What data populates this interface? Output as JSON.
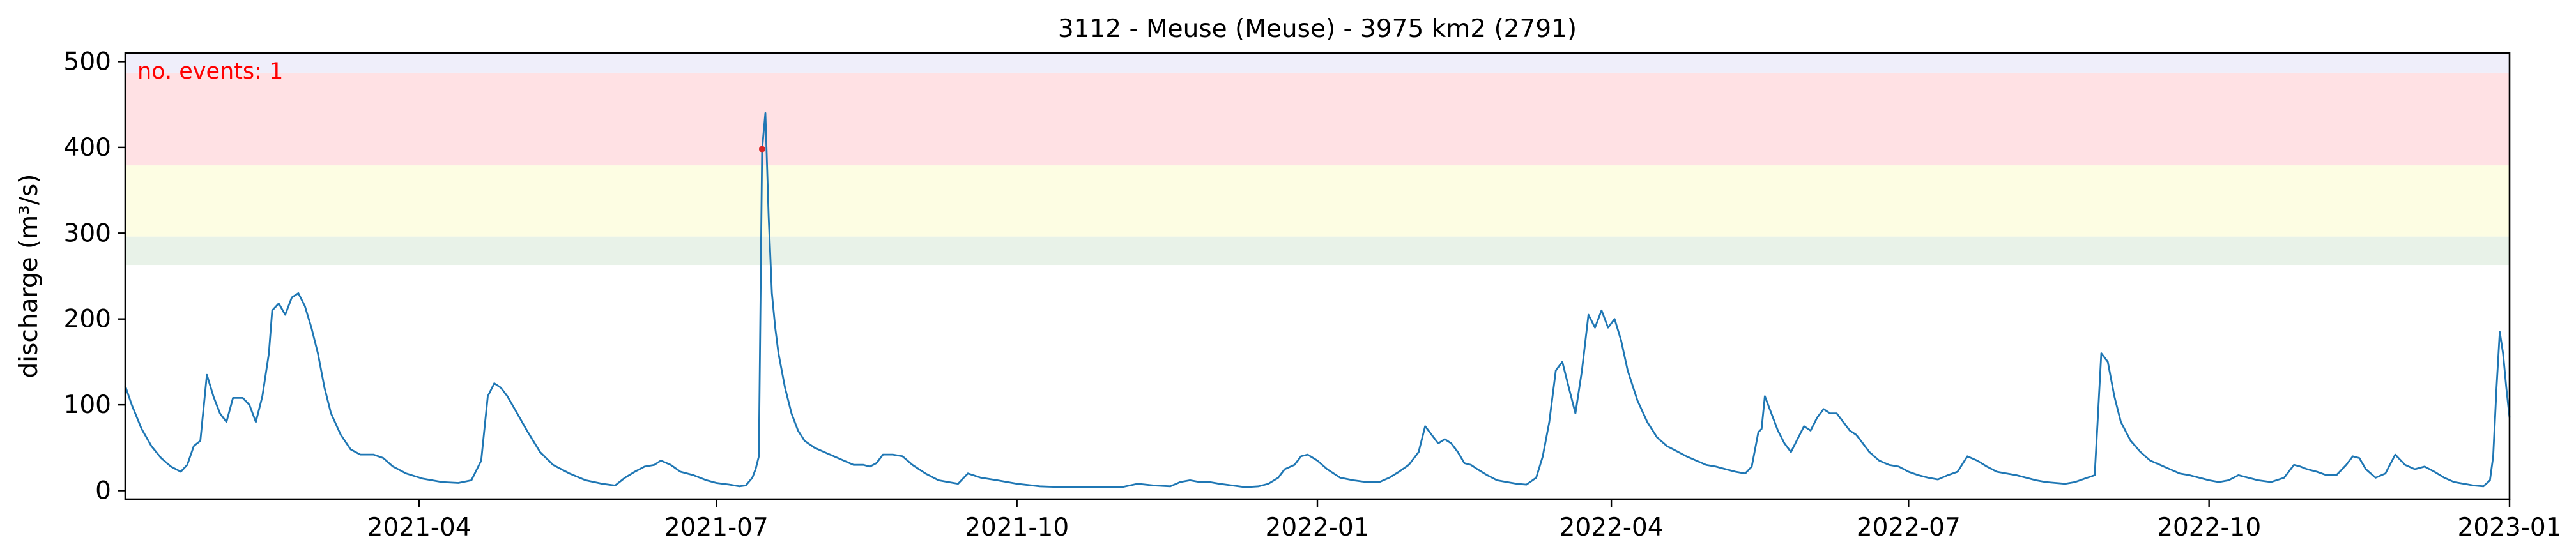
{
  "chart_data": {
    "type": "line",
    "title": "3112 - Meuse (Meuse) - 3975 km2 (2791)",
    "xlabel": "",
    "ylabel": "discharge (m³/s)",
    "xlim": [
      "2021-01-01",
      "2023-01-01"
    ],
    "ylim": [
      -10,
      510
    ],
    "x_ticks": [
      "2021-04",
      "2021-07",
      "2021-10",
      "2022-01",
      "2022-04",
      "2022-07",
      "2022-10",
      "2023-01"
    ],
    "y_ticks": [
      0,
      100,
      200,
      300,
      400,
      500
    ],
    "grid": false,
    "annotation": "no. events: 1",
    "annotation_color": "#ff0000",
    "line_color": "#1f77b4",
    "threshold_bands": [
      {
        "from": 263,
        "to": 296,
        "color": "#e8f2e8"
      },
      {
        "from": 296,
        "to": 379,
        "color": "#fdfde3"
      },
      {
        "from": 379,
        "to": 487,
        "color": "#ffe1e4"
      },
      {
        "from": 487,
        "to": 510,
        "color": "#efeefa"
      }
    ],
    "events": [
      {
        "date": "2021-07-15",
        "value": 398,
        "color": "#d62728"
      }
    ],
    "series": [
      {
        "points": [
          [
            "2021-01-01",
            122
          ],
          [
            "2021-01-03",
            100
          ],
          [
            "2021-01-06",
            72
          ],
          [
            "2021-01-09",
            52
          ],
          [
            "2021-01-12",
            38
          ],
          [
            "2021-01-15",
            28
          ],
          [
            "2021-01-18",
            22
          ],
          [
            "2021-01-20",
            30
          ],
          [
            "2021-01-22",
            52
          ],
          [
            "2021-01-24",
            58
          ],
          [
            "2021-01-26",
            135
          ],
          [
            "2021-01-28",
            110
          ],
          [
            "2021-01-30",
            90
          ],
          [
            "2021-02-01",
            80
          ],
          [
            "2021-02-03",
            108
          ],
          [
            "2021-02-06",
            108
          ],
          [
            "2021-02-08",
            100
          ],
          [
            "2021-02-10",
            80
          ],
          [
            "2021-02-12",
            110
          ],
          [
            "2021-02-14",
            160
          ],
          [
            "2021-02-15",
            210
          ],
          [
            "2021-02-17",
            218
          ],
          [
            "2021-02-19",
            205
          ],
          [
            "2021-02-21",
            225
          ],
          [
            "2021-02-23",
            230
          ],
          [
            "2021-02-25",
            215
          ],
          [
            "2021-02-27",
            190
          ],
          [
            "2021-03-01",
            160
          ],
          [
            "2021-03-03",
            120
          ],
          [
            "2021-03-05",
            90
          ],
          [
            "2021-03-08",
            65
          ],
          [
            "2021-03-11",
            48
          ],
          [
            "2021-03-14",
            42
          ],
          [
            "2021-03-18",
            42
          ],
          [
            "2021-03-21",
            38
          ],
          [
            "2021-03-24",
            28
          ],
          [
            "2021-03-28",
            20
          ],
          [
            "2021-04-02",
            14
          ],
          [
            "2021-04-08",
            10
          ],
          [
            "2021-04-13",
            9
          ],
          [
            "2021-04-17",
            12
          ],
          [
            "2021-04-20",
            35
          ],
          [
            "2021-04-22",
            110
          ],
          [
            "2021-04-24",
            125
          ],
          [
            "2021-04-26",
            120
          ],
          [
            "2021-04-28",
            110
          ],
          [
            "2021-05-01",
            90
          ],
          [
            "2021-05-04",
            70
          ],
          [
            "2021-05-08",
            45
          ],
          [
            "2021-05-12",
            30
          ],
          [
            "2021-05-17",
            20
          ],
          [
            "2021-05-22",
            12
          ],
          [
            "2021-05-27",
            8
          ],
          [
            "2021-05-31",
            6
          ],
          [
            "2021-06-03",
            15
          ],
          [
            "2021-06-06",
            22
          ],
          [
            "2021-06-09",
            28
          ],
          [
            "2021-06-12",
            30
          ],
          [
            "2021-06-14",
            35
          ],
          [
            "2021-06-17",
            30
          ],
          [
            "2021-06-20",
            22
          ],
          [
            "2021-06-24",
            18
          ],
          [
            "2021-06-28",
            12
          ],
          [
            "2021-07-01",
            9
          ],
          [
            "2021-07-05",
            7
          ],
          [
            "2021-07-08",
            5
          ],
          [
            "2021-07-10",
            6
          ],
          [
            "2021-07-12",
            15
          ],
          [
            "2021-07-13",
            25
          ],
          [
            "2021-07-14",
            40
          ],
          [
            "2021-07-15",
            398
          ],
          [
            "2021-07-16",
            440
          ],
          [
            "2021-07-17",
            320
          ],
          [
            "2021-07-18",
            230
          ],
          [
            "2021-07-19",
            190
          ],
          [
            "2021-07-20",
            160
          ],
          [
            "2021-07-22",
            120
          ],
          [
            "2021-07-24",
            90
          ],
          [
            "2021-07-26",
            70
          ],
          [
            "2021-07-28",
            58
          ],
          [
            "2021-07-31",
            50
          ],
          [
            "2021-08-03",
            45
          ],
          [
            "2021-08-06",
            40
          ],
          [
            "2021-08-09",
            35
          ],
          [
            "2021-08-12",
            30
          ],
          [
            "2021-08-15",
            30
          ],
          [
            "2021-08-17",
            28
          ],
          [
            "2021-08-19",
            32
          ],
          [
            "2021-08-21",
            42
          ],
          [
            "2021-08-24",
            42
          ],
          [
            "2021-08-27",
            40
          ],
          [
            "2021-08-30",
            30
          ],
          [
            "2021-09-03",
            20
          ],
          [
            "2021-09-07",
            12
          ],
          [
            "2021-09-10",
            10
          ],
          [
            "2021-09-13",
            8
          ],
          [
            "2021-09-16",
            20
          ],
          [
            "2021-09-20",
            15
          ],
          [
            "2021-09-25",
            12
          ],
          [
            "2021-10-01",
            8
          ],
          [
            "2021-10-08",
            5
          ],
          [
            "2021-10-15",
            4
          ],
          [
            "2021-10-22",
            4
          ],
          [
            "2021-10-28",
            4
          ],
          [
            "2021-11-02",
            4
          ],
          [
            "2021-11-07",
            8
          ],
          [
            "2021-11-12",
            6
          ],
          [
            "2021-11-17",
            5
          ],
          [
            "2021-11-20",
            10
          ],
          [
            "2021-11-23",
            12
          ],
          [
            "2021-11-26",
            10
          ],
          [
            "2021-11-29",
            10
          ],
          [
            "2021-12-02",
            8
          ],
          [
            "2021-12-06",
            6
          ],
          [
            "2021-12-10",
            4
          ],
          [
            "2021-12-14",
            5
          ],
          [
            "2021-12-17",
            8
          ],
          [
            "2021-12-20",
            15
          ],
          [
            "2021-12-22",
            25
          ],
          [
            "2021-12-25",
            30
          ],
          [
            "2021-12-27",
            40
          ],
          [
            "2021-12-29",
            42
          ],
          [
            "2022-01-01",
            35
          ],
          [
            "2022-01-04",
            25
          ],
          [
            "2022-01-08",
            15
          ],
          [
            "2022-01-12",
            12
          ],
          [
            "2022-01-16",
            10
          ],
          [
            "2022-01-20",
            10
          ],
          [
            "2022-01-23",
            15
          ],
          [
            "2022-01-26",
            22
          ],
          [
            "2022-01-29",
            30
          ],
          [
            "2022-02-01",
            45
          ],
          [
            "2022-02-03",
            75
          ],
          [
            "2022-02-05",
            65
          ],
          [
            "2022-02-07",
            55
          ],
          [
            "2022-02-09",
            60
          ],
          [
            "2022-02-11",
            55
          ],
          [
            "2022-02-13",
            45
          ],
          [
            "2022-02-15",
            32
          ],
          [
            "2022-02-17",
            30
          ],
          [
            "2022-02-19",
            25
          ],
          [
            "2022-02-22",
            18
          ],
          [
            "2022-02-25",
            12
          ],
          [
            "2022-02-28",
            10
          ],
          [
            "2022-03-03",
            8
          ],
          [
            "2022-03-06",
            7
          ],
          [
            "2022-03-09",
            15
          ],
          [
            "2022-03-11",
            40
          ],
          [
            "2022-03-13",
            80
          ],
          [
            "2022-03-15",
            140
          ],
          [
            "2022-03-17",
            150
          ],
          [
            "2022-03-19",
            120
          ],
          [
            "2022-03-21",
            90
          ],
          [
            "2022-03-23",
            140
          ],
          [
            "2022-03-25",
            205
          ],
          [
            "2022-03-27",
            190
          ],
          [
            "2022-03-29",
            210
          ],
          [
            "2022-03-31",
            190
          ],
          [
            "2022-04-02",
            200
          ],
          [
            "2022-04-04",
            175
          ],
          [
            "2022-04-06",
            140
          ],
          [
            "2022-04-09",
            105
          ],
          [
            "2022-04-12",
            80
          ],
          [
            "2022-04-15",
            62
          ],
          [
            "2022-04-18",
            52
          ],
          [
            "2022-04-21",
            46
          ],
          [
            "2022-04-24",
            40
          ],
          [
            "2022-04-27",
            35
          ],
          [
            "2022-04-30",
            30
          ],
          [
            "2022-05-03",
            28
          ],
          [
            "2022-05-06",
            25
          ],
          [
            "2022-05-09",
            22
          ],
          [
            "2022-05-12",
            20
          ],
          [
            "2022-05-14",
            28
          ],
          [
            "2022-05-16",
            68
          ],
          [
            "2022-05-17",
            72
          ],
          [
            "2022-05-18",
            110
          ],
          [
            "2022-05-20",
            90
          ],
          [
            "2022-05-22",
            70
          ],
          [
            "2022-05-24",
            55
          ],
          [
            "2022-05-26",
            45
          ],
          [
            "2022-05-28",
            60
          ],
          [
            "2022-05-30",
            75
          ],
          [
            "2022-06-01",
            70
          ],
          [
            "2022-06-03",
            85
          ],
          [
            "2022-06-05",
            95
          ],
          [
            "2022-06-07",
            90
          ],
          [
            "2022-06-09",
            90
          ],
          [
            "2022-06-11",
            80
          ],
          [
            "2022-06-13",
            70
          ],
          [
            "2022-06-15",
            65
          ],
          [
            "2022-06-17",
            55
          ],
          [
            "2022-06-19",
            45
          ],
          [
            "2022-06-22",
            35
          ],
          [
            "2022-06-25",
            30
          ],
          [
            "2022-06-28",
            28
          ],
          [
            "2022-07-01",
            22
          ],
          [
            "2022-07-04",
            18
          ],
          [
            "2022-07-07",
            15
          ],
          [
            "2022-07-10",
            13
          ],
          [
            "2022-07-13",
            18
          ],
          [
            "2022-07-16",
            22
          ],
          [
            "2022-07-19",
            40
          ],
          [
            "2022-07-22",
            35
          ],
          [
            "2022-07-25",
            28
          ],
          [
            "2022-07-28",
            22
          ],
          [
            "2022-07-31",
            20
          ],
          [
            "2022-08-03",
            18
          ],
          [
            "2022-08-06",
            15
          ],
          [
            "2022-08-09",
            12
          ],
          [
            "2022-08-12",
            10
          ],
          [
            "2022-08-15",
            9
          ],
          [
            "2022-08-18",
            8
          ],
          [
            "2022-08-21",
            10
          ],
          [
            "2022-08-24",
            14
          ],
          [
            "2022-08-27",
            18
          ],
          [
            "2022-08-29",
            160
          ],
          [
            "2022-08-31",
            150
          ],
          [
            "2022-09-02",
            110
          ],
          [
            "2022-09-04",
            80
          ],
          [
            "2022-09-07",
            58
          ],
          [
            "2022-09-10",
            45
          ],
          [
            "2022-09-13",
            35
          ],
          [
            "2022-09-16",
            30
          ],
          [
            "2022-09-19",
            25
          ],
          [
            "2022-09-22",
            20
          ],
          [
            "2022-09-25",
            18
          ],
          [
            "2022-09-28",
            15
          ],
          [
            "2022-10-01",
            12
          ],
          [
            "2022-10-04",
            10
          ],
          [
            "2022-10-07",
            12
          ],
          [
            "2022-10-10",
            18
          ],
          [
            "2022-10-13",
            15
          ],
          [
            "2022-10-16",
            12
          ],
          [
            "2022-10-20",
            10
          ],
          [
            "2022-10-24",
            15
          ],
          [
            "2022-10-27",
            30
          ],
          [
            "2022-10-29",
            28
          ],
          [
            "2022-10-31",
            25
          ],
          [
            "2022-11-03",
            22
          ],
          [
            "2022-11-06",
            18
          ],
          [
            "2022-11-09",
            18
          ],
          [
            "2022-11-12",
            30
          ],
          [
            "2022-11-14",
            40
          ],
          [
            "2022-11-16",
            38
          ],
          [
            "2022-11-18",
            25
          ],
          [
            "2022-11-21",
            15
          ],
          [
            "2022-11-24",
            20
          ],
          [
            "2022-11-27",
            42
          ],
          [
            "2022-11-30",
            30
          ],
          [
            "2022-12-03",
            25
          ],
          [
            "2022-12-06",
            28
          ],
          [
            "2022-12-09",
            22
          ],
          [
            "2022-12-12",
            15
          ],
          [
            "2022-12-15",
            10
          ],
          [
            "2022-12-18",
            8
          ],
          [
            "2022-12-21",
            6
          ],
          [
            "2022-12-24",
            5
          ],
          [
            "2022-12-26",
            12
          ],
          [
            "2022-12-27",
            40
          ],
          [
            "2022-12-28",
            120
          ],
          [
            "2022-12-29",
            185
          ],
          [
            "2022-12-30",
            160
          ],
          [
            "2022-12-31",
            120
          ],
          [
            "2023-01-01",
            85
          ]
        ]
      }
    ]
  }
}
